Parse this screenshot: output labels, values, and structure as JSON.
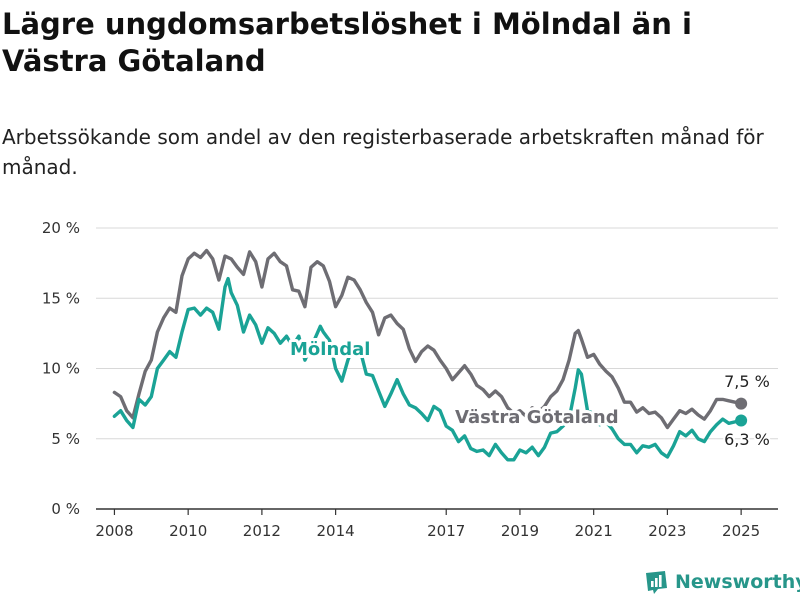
{
  "header": {
    "title": "Lägre ungdomsarbetslöshet i Mölndal än i Västra Götaland",
    "subtitle": "Arbetssökande som andel av den registerbaserade arbetskraften månad för månad."
  },
  "brand": {
    "name": "Newsworthy"
  },
  "colors": {
    "molndal": "#1aa396",
    "vastra_gotaland": "#6e6d73",
    "axis": "#333333",
    "grid": "#d8d8d8"
  },
  "chart_data": {
    "type": "line",
    "title": "Lägre ungdomsarbetslöshet i Mölndal än i Västra Götaland",
    "subtitle": "Arbetssökande som andel av den registerbaserade arbetskraften månad för månad.",
    "xlabel": "",
    "ylabel": "",
    "x_ticks": [
      "2008",
      "2010",
      "2012",
      "2014",
      "2017",
      "2019",
      "2021",
      "2023",
      "2025"
    ],
    "y_ticks": [
      "0 %",
      "5 %",
      "10 %",
      "15 %",
      "20 %"
    ],
    "ylim": [
      0,
      20
    ],
    "xlim": [
      "2007-07",
      "2026-01"
    ],
    "grid": "horizontal",
    "legend": "direct labels on lines",
    "series": [
      {
        "name": "Mölndal",
        "color": "#1aa396",
        "end_label": "6,3 %",
        "points": [
          [
            "2008-01",
            6.6
          ],
          [
            "2008-03",
            7.0
          ],
          [
            "2008-05",
            6.3
          ],
          [
            "2008-07",
            5.8
          ],
          [
            "2008-09",
            7.8
          ],
          [
            "2008-11",
            7.4
          ],
          [
            "2009-01",
            8.0
          ],
          [
            "2009-03",
            10.0
          ],
          [
            "2009-05",
            10.6
          ],
          [
            "2009-07",
            11.2
          ],
          [
            "2009-09",
            10.8
          ],
          [
            "2009-11",
            12.6
          ],
          [
            "2010-01",
            14.2
          ],
          [
            "2010-03",
            14.3
          ],
          [
            "2010-05",
            13.8
          ],
          [
            "2010-07",
            14.3
          ],
          [
            "2010-09",
            14.0
          ],
          [
            "2010-11",
            12.8
          ],
          [
            "2011-01",
            15.8
          ],
          [
            "2011-02",
            16.4
          ],
          [
            "2011-03",
            15.4
          ],
          [
            "2011-05",
            14.5
          ],
          [
            "2011-07",
            12.6
          ],
          [
            "2011-09",
            13.8
          ],
          [
            "2011-11",
            13.1
          ],
          [
            "2012-01",
            11.8
          ],
          [
            "2012-03",
            12.9
          ],
          [
            "2012-05",
            12.5
          ],
          [
            "2012-07",
            11.8
          ],
          [
            "2012-09",
            12.3
          ],
          [
            "2012-11",
            11.6
          ],
          [
            "2013-01",
            12.3
          ],
          [
            "2013-03",
            10.6
          ],
          [
            "2013-05",
            11.5
          ],
          [
            "2013-07",
            12.5
          ],
          [
            "2013-08",
            13.0
          ],
          [
            "2013-09",
            12.6
          ],
          [
            "2013-11",
            12.0
          ],
          [
            "2014-01",
            10.0
          ],
          [
            "2014-03",
            9.1
          ],
          [
            "2014-05",
            10.6
          ],
          [
            "2014-07",
            11.6
          ],
          [
            "2014-09",
            11.3
          ],
          [
            "2014-11",
            9.6
          ],
          [
            "2015-01",
            9.5
          ],
          [
            "2015-03",
            8.4
          ],
          [
            "2015-05",
            7.3
          ],
          [
            "2015-07",
            8.2
          ],
          [
            "2015-09",
            9.2
          ],
          [
            "2015-11",
            8.2
          ],
          [
            "2016-01",
            7.4
          ],
          [
            "2016-03",
            7.2
          ],
          [
            "2016-05",
            6.8
          ],
          [
            "2016-07",
            6.3
          ],
          [
            "2016-09",
            7.3
          ],
          [
            "2016-11",
            7.0
          ],
          [
            "2017-01",
            5.9
          ],
          [
            "2017-03",
            5.6
          ],
          [
            "2017-05",
            4.8
          ],
          [
            "2017-07",
            5.2
          ],
          [
            "2017-09",
            4.3
          ],
          [
            "2017-11",
            4.1
          ],
          [
            "2018-01",
            4.2
          ],
          [
            "2018-03",
            3.8
          ],
          [
            "2018-05",
            4.6
          ],
          [
            "2018-07",
            4.0
          ],
          [
            "2018-09",
            3.5
          ],
          [
            "2018-11",
            3.5
          ],
          [
            "2019-01",
            4.2
          ],
          [
            "2019-03",
            4.0
          ],
          [
            "2019-05",
            4.4
          ],
          [
            "2019-07",
            3.8
          ],
          [
            "2019-09",
            4.4
          ],
          [
            "2019-11",
            5.4
          ],
          [
            "2020-01",
            5.5
          ],
          [
            "2020-03",
            5.9
          ],
          [
            "2020-05",
            6.4
          ],
          [
            "2020-07",
            8.6
          ],
          [
            "2020-08",
            9.9
          ],
          [
            "2020-09",
            9.6
          ],
          [
            "2020-11",
            7.0
          ],
          [
            "2021-01",
            6.8
          ],
          [
            "2021-03",
            6.0
          ],
          [
            "2021-05",
            6.2
          ],
          [
            "2021-07",
            5.7
          ],
          [
            "2021-09",
            5.0
          ],
          [
            "2021-11",
            4.6
          ],
          [
            "2022-01",
            4.6
          ],
          [
            "2022-03",
            4.0
          ],
          [
            "2022-05",
            4.5
          ],
          [
            "2022-07",
            4.4
          ],
          [
            "2022-09",
            4.6
          ],
          [
            "2022-11",
            4.0
          ],
          [
            "2023-01",
            3.7
          ],
          [
            "2023-03",
            4.5
          ],
          [
            "2023-05",
            5.5
          ],
          [
            "2023-07",
            5.2
          ],
          [
            "2023-09",
            5.6
          ],
          [
            "2023-11",
            5.0
          ],
          [
            "2024-01",
            4.8
          ],
          [
            "2024-03",
            5.5
          ],
          [
            "2024-05",
            6.0
          ],
          [
            "2024-07",
            6.4
          ],
          [
            "2024-09",
            6.1
          ],
          [
            "2024-11",
            6.2
          ],
          [
            "2025-01",
            6.3
          ]
        ]
      },
      {
        "name": "Västra Götaland",
        "color": "#6e6d73",
        "end_label": "7,5 %",
        "points": [
          [
            "2008-01",
            8.3
          ],
          [
            "2008-03",
            8.0
          ],
          [
            "2008-05",
            7.0
          ],
          [
            "2008-07",
            6.5
          ],
          [
            "2008-09",
            8.2
          ],
          [
            "2008-11",
            9.8
          ],
          [
            "2009-01",
            10.6
          ],
          [
            "2009-03",
            12.6
          ],
          [
            "2009-05",
            13.6
          ],
          [
            "2009-07",
            14.3
          ],
          [
            "2009-09",
            14.0
          ],
          [
            "2009-11",
            16.6
          ],
          [
            "2010-01",
            17.8
          ],
          [
            "2010-03",
            18.2
          ],
          [
            "2010-05",
            17.9
          ],
          [
            "2010-07",
            18.4
          ],
          [
            "2010-09",
            17.8
          ],
          [
            "2010-11",
            16.3
          ],
          [
            "2011-01",
            18.0
          ],
          [
            "2011-03",
            17.8
          ],
          [
            "2011-05",
            17.2
          ],
          [
            "2011-07",
            16.7
          ],
          [
            "2011-09",
            18.3
          ],
          [
            "2011-11",
            17.6
          ],
          [
            "2012-01",
            15.8
          ],
          [
            "2012-03",
            17.8
          ],
          [
            "2012-05",
            18.2
          ],
          [
            "2012-07",
            17.6
          ],
          [
            "2012-09",
            17.3
          ],
          [
            "2012-11",
            15.6
          ],
          [
            "2013-01",
            15.5
          ],
          [
            "2013-03",
            14.4
          ],
          [
            "2013-05",
            17.2
          ],
          [
            "2013-07",
            17.6
          ],
          [
            "2013-09",
            17.3
          ],
          [
            "2013-11",
            16.2
          ],
          [
            "2014-01",
            14.4
          ],
          [
            "2014-03",
            15.2
          ],
          [
            "2014-05",
            16.5
          ],
          [
            "2014-07",
            16.3
          ],
          [
            "2014-09",
            15.6
          ],
          [
            "2014-11",
            14.7
          ],
          [
            "2015-01",
            14.0
          ],
          [
            "2015-03",
            12.4
          ],
          [
            "2015-05",
            13.6
          ],
          [
            "2015-07",
            13.8
          ],
          [
            "2015-09",
            13.2
          ],
          [
            "2015-11",
            12.8
          ],
          [
            "2016-01",
            11.4
          ],
          [
            "2016-03",
            10.5
          ],
          [
            "2016-05",
            11.2
          ],
          [
            "2016-07",
            11.6
          ],
          [
            "2016-09",
            11.3
          ],
          [
            "2016-11",
            10.6
          ],
          [
            "2017-01",
            10.0
          ],
          [
            "2017-03",
            9.2
          ],
          [
            "2017-05",
            9.7
          ],
          [
            "2017-07",
            10.2
          ],
          [
            "2017-09",
            9.6
          ],
          [
            "2017-11",
            8.8
          ],
          [
            "2018-01",
            8.5
          ],
          [
            "2018-03",
            8.0
          ],
          [
            "2018-05",
            8.4
          ],
          [
            "2018-07",
            8.0
          ],
          [
            "2018-09",
            7.2
          ],
          [
            "2018-11",
            6.8
          ],
          [
            "2019-01",
            7.0
          ],
          [
            "2019-03",
            6.6
          ],
          [
            "2019-05",
            7.2
          ],
          [
            "2019-07",
            6.9
          ],
          [
            "2019-09",
            7.3
          ],
          [
            "2019-11",
            8.0
          ],
          [
            "2020-01",
            8.4
          ],
          [
            "2020-03",
            9.2
          ],
          [
            "2020-05",
            10.6
          ],
          [
            "2020-07",
            12.5
          ],
          [
            "2020-08",
            12.7
          ],
          [
            "2020-09",
            12.1
          ],
          [
            "2020-11",
            10.8
          ],
          [
            "2021-01",
            11.0
          ],
          [
            "2021-03",
            10.3
          ],
          [
            "2021-05",
            9.8
          ],
          [
            "2021-07",
            9.4
          ],
          [
            "2021-09",
            8.6
          ],
          [
            "2021-11",
            7.6
          ],
          [
            "2022-01",
            7.6
          ],
          [
            "2022-03",
            6.9
          ],
          [
            "2022-05",
            7.2
          ],
          [
            "2022-07",
            6.8
          ],
          [
            "2022-09",
            6.9
          ],
          [
            "2022-11",
            6.5
          ],
          [
            "2023-01",
            5.8
          ],
          [
            "2023-03",
            6.4
          ],
          [
            "2023-05",
            7.0
          ],
          [
            "2023-07",
            6.8
          ],
          [
            "2023-09",
            7.1
          ],
          [
            "2023-11",
            6.7
          ],
          [
            "2024-01",
            6.4
          ],
          [
            "2024-03",
            7.0
          ],
          [
            "2024-05",
            7.8
          ],
          [
            "2024-07",
            7.8
          ],
          [
            "2024-09",
            7.7
          ],
          [
            "2024-11",
            7.6
          ],
          [
            "2025-01",
            7.5
          ]
        ]
      }
    ]
  }
}
